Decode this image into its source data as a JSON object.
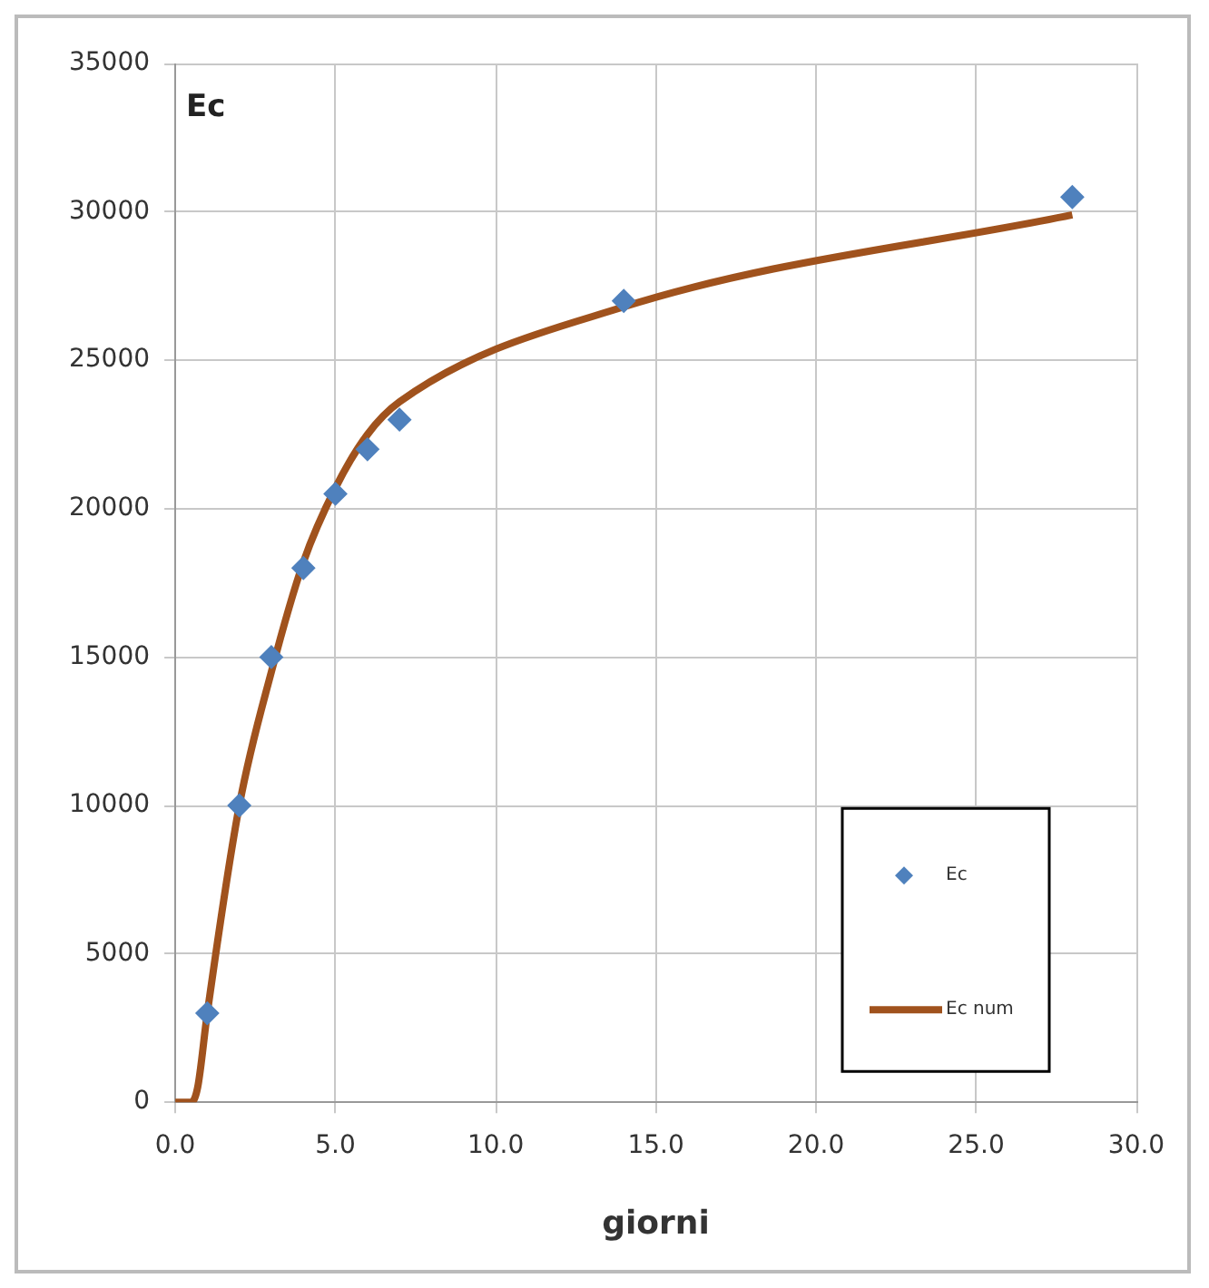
{
  "chart_data": {
    "type": "scatter",
    "xlabel": "giorni",
    "ylabel": "Ec",
    "xlim": [
      0,
      30
    ],
    "xticks": [
      {
        "value": 0,
        "label": "0.0"
      },
      {
        "value": 5,
        "label": "5.0"
      },
      {
        "value": 10,
        "label": "10.0"
      },
      {
        "value": 15,
        "label": "15.0"
      },
      {
        "value": 20,
        "label": "20.0"
      },
      {
        "value": 25,
        "label": "25.0"
      },
      {
        "value": 30,
        "label": "30.0"
      }
    ],
    "ylim": [
      0,
      35000
    ],
    "yticks": [
      0,
      5000,
      10000,
      15000,
      20000,
      25000,
      30000,
      35000
    ],
    "grid": true,
    "legend": "bottom right",
    "series": [
      {
        "name": "Ec",
        "marker": "diamond",
        "color": "#4f81bd",
        "x": [
          1,
          2,
          3,
          4,
          5,
          6,
          7,
          14,
          28
        ],
        "values": [
          3000,
          10000,
          15000,
          18000,
          20500,
          22000,
          23000,
          27000,
          30500
        ]
      },
      {
        "name": "Ec num",
        "type": "line",
        "marker": "none",
        "color": "#a0521d",
        "x": [
          0,
          0.5,
          0.7,
          1,
          2,
          3,
          4,
          5,
          6,
          7,
          14,
          28
        ],
        "values": [
          0,
          0,
          500,
          3000,
          10000,
          14500,
          18200,
          20700,
          22500,
          23600,
          26800,
          29900
        ]
      }
    ]
  }
}
